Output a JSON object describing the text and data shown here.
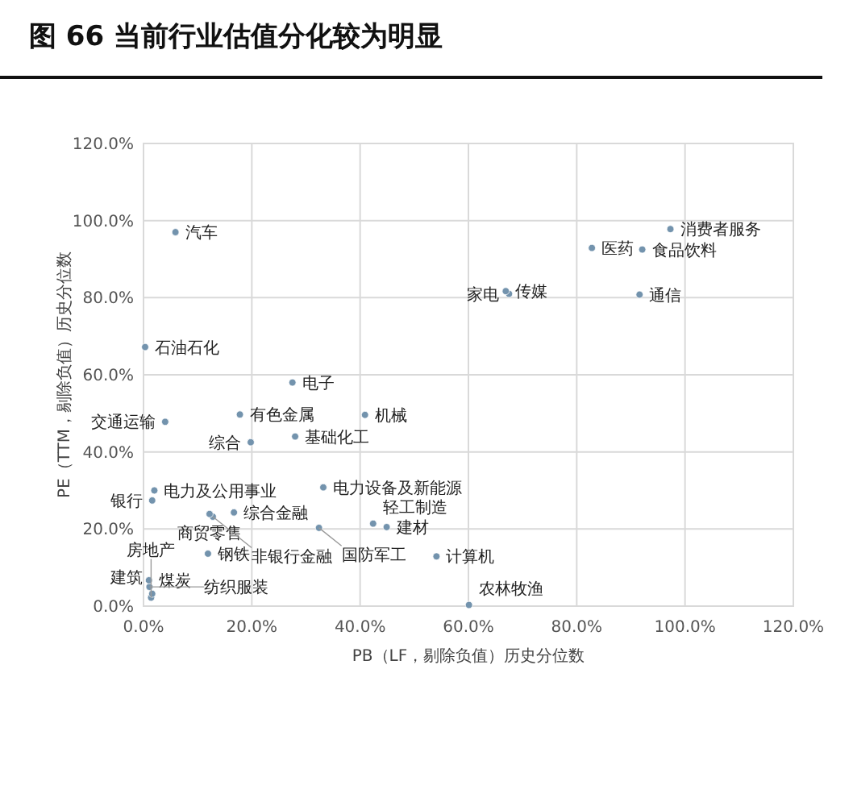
{
  "chart_data": {
    "type": "scatter",
    "title": "图 66  当前行业估值分化较为明显",
    "xlabel": "PB（LF，剔除负值）历史分位数",
    "ylabel": "PE（TTM，剔除负值）历史分位数",
    "xlim": [
      0,
      120
    ],
    "ylim": [
      0,
      120
    ],
    "xticks": [
      {
        "value": 0,
        "label": "0.0%"
      },
      {
        "value": 20,
        "label": "20.0%"
      },
      {
        "value": 40,
        "label": "40.0%"
      },
      {
        "value": 60,
        "label": "60.0%"
      },
      {
        "value": 80,
        "label": "80.0%"
      },
      {
        "value": 100,
        "label": "100.0%"
      },
      {
        "value": 120,
        "label": "120.0%"
      }
    ],
    "yticks": [
      {
        "value": 0,
        "label": "0.0%"
      },
      {
        "value": 20,
        "label": "20.0%"
      },
      {
        "value": 40,
        "label": "40.0%"
      },
      {
        "value": 60,
        "label": "60.0%"
      },
      {
        "value": 80,
        "label": "80.0%"
      },
      {
        "value": 100,
        "label": "100.0%"
      },
      {
        "value": 120,
        "label": "120.0%"
      }
    ],
    "grid": true,
    "marker": "circle",
    "series": [
      {
        "color": "#7393ad",
        "x": [
          5.9,
          0.3,
          27.5,
          4.0,
          17.8,
          28.0,
          40.9,
          19.8,
          2.0,
          1.6,
          16.7,
          12.2,
          12.8,
          11.9,
          33.2,
          32.4,
          42.4,
          44.9,
          54.1,
          60.1,
          1.0,
          1.6,
          1.4,
          1.1,
          97.3,
          82.8,
          92.1,
          66.9,
          67.5,
          91.6
        ],
        "values": [
          97.0,
          67.2,
          58.0,
          47.8,
          49.7,
          44.0,
          49.6,
          42.5,
          30.0,
          27.4,
          24.3,
          23.9,
          23.2,
          13.6,
          30.8,
          20.3,
          21.4,
          20.5,
          12.9,
          0.3,
          6.7,
          3.2,
          2.2,
          5.0,
          97.8,
          92.9,
          92.5,
          81.7,
          81.0,
          80.8
        ]
      }
    ],
    "annotations": [
      {
        "text": "汽车",
        "x": 5.9,
        "y": 97.0
      },
      {
        "text": "石油石化",
        "x": 0.3,
        "y": 67.2
      },
      {
        "text": "电子",
        "x": 27.5,
        "y": 58.0
      },
      {
        "text": "交通运输",
        "x": 4.0,
        "y": 47.8
      },
      {
        "text": "有色金属",
        "x": 17.8,
        "y": 49.7
      },
      {
        "text": "基础化工",
        "x": 28.0,
        "y": 44.0
      },
      {
        "text": "机械",
        "x": 40.9,
        "y": 49.6
      },
      {
        "text": "综合",
        "x": 19.8,
        "y": 42.5
      },
      {
        "text": "电力及公用事业",
        "x": 2.0,
        "y": 30.0
      },
      {
        "text": "银行",
        "x": 1.6,
        "y": 27.4
      },
      {
        "text": "综合金融",
        "x": 16.7,
        "y": 24.3
      },
      {
        "text": "商贸零售",
        "x": 12.2,
        "y": 23.9
      },
      {
        "text": "非银行金融",
        "x": 12.8,
        "y": 23.2
      },
      {
        "text": "钢铁",
        "x": 11.9,
        "y": 13.6
      },
      {
        "text": "电力设备及新能源",
        "x": 33.2,
        "y": 30.8
      },
      {
        "text": "国防军工",
        "x": 32.4,
        "y": 20.3
      },
      {
        "text": "轻工制造",
        "x": 42.4,
        "y": 21.4
      },
      {
        "text": "建材",
        "x": 44.9,
        "y": 20.5
      },
      {
        "text": "计算机",
        "x": 54.1,
        "y": 12.9
      },
      {
        "text": "农林牧渔",
        "x": 60.1,
        "y": 0.3
      },
      {
        "text": "煤炭",
        "x": 1.0,
        "y": 6.7
      },
      {
        "text": "建筑",
        "x": 1.6,
        "y": 3.2
      },
      {
        "text": "房地产",
        "x": 1.4,
        "y": 2.2
      },
      {
        "text": "纺织服装",
        "x": 1.1,
        "y": 5.0
      },
      {
        "text": "消费者服务",
        "x": 97.3,
        "y": 97.8
      },
      {
        "text": "医药",
        "x": 82.8,
        "y": 92.9
      },
      {
        "text": "食品饮料",
        "x": 92.1,
        "y": 92.5
      },
      {
        "text": "传媒",
        "x": 66.9,
        "y": 81.7
      },
      {
        "text": "家电",
        "x": 67.5,
        "y": 81.0
      },
      {
        "text": "通信",
        "x": 91.6,
        "y": 80.8
      }
    ]
  }
}
